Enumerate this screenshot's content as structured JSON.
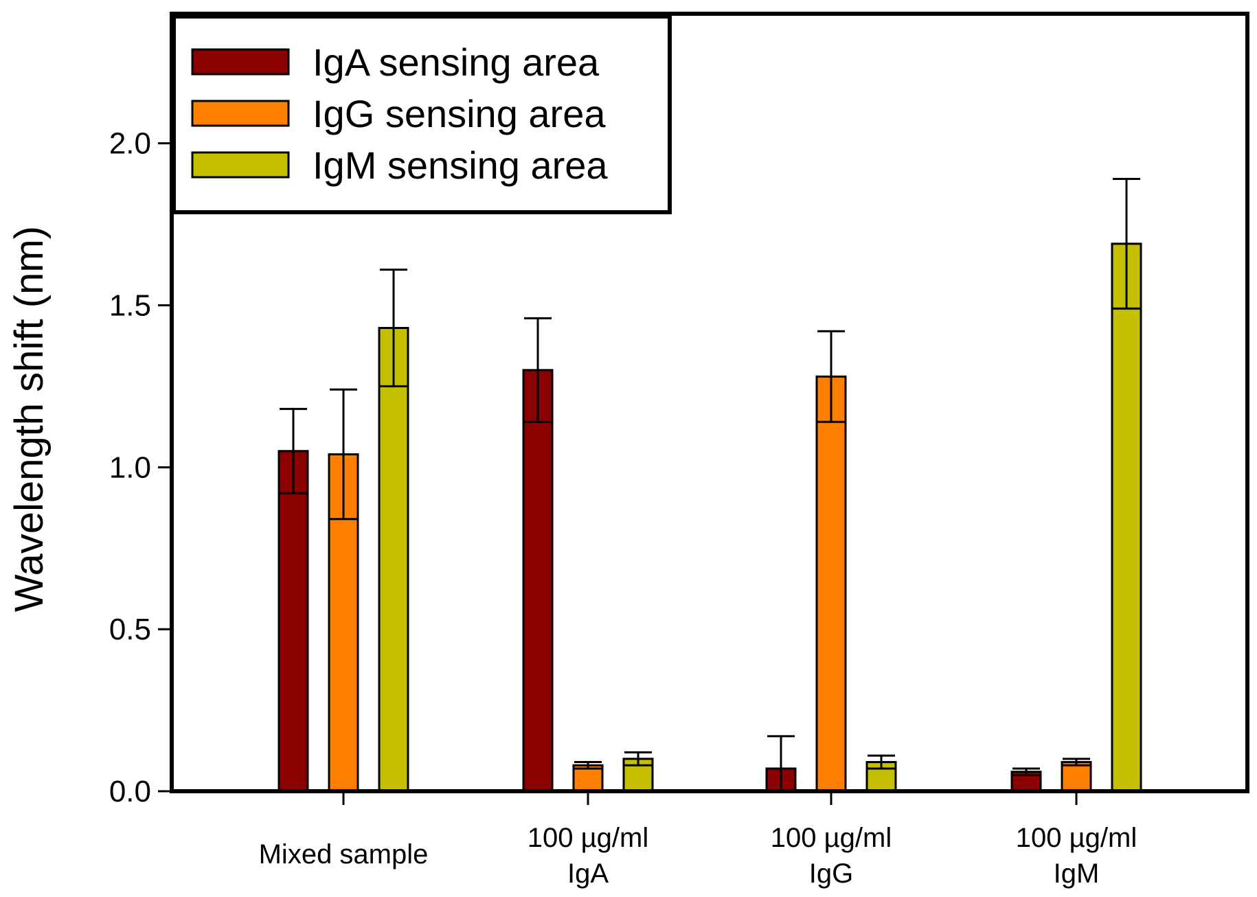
{
  "chart_data": {
    "type": "bar",
    "title": "",
    "xlabel": "",
    "ylabel": "Wavelength shift (nm)",
    "ylim": [
      0,
      2.4
    ],
    "yticks": [
      "0.0",
      "0.5",
      "1.0",
      "1.5",
      "2.0"
    ],
    "categories": [
      {
        "line1": "Mixed sample",
        "line2": ""
      },
      {
        "line1": "100 µg/ml",
        "line2": "IgA"
      },
      {
        "line1": "100 µg/ml",
        "line2": "IgG"
      },
      {
        "line1": "100 µg/ml",
        "line2": "IgM"
      }
    ],
    "series": [
      {
        "name": "IgA sensing area",
        "color": "#8B0000",
        "values": [
          1.05,
          1.3,
          0.07,
          0.06
        ],
        "errors": [
          0.13,
          0.16,
          0.1,
          0.01
        ]
      },
      {
        "name": "IgG sensing area",
        "color": "#FF8000",
        "values": [
          1.04,
          0.08,
          1.28,
          0.09
        ],
        "errors": [
          0.2,
          0.01,
          0.14,
          0.01
        ]
      },
      {
        "name": "IgM sensing area",
        "color": "#C4BF00",
        "values": [
          1.43,
          0.1,
          0.09,
          1.69
        ],
        "errors": [
          0.18,
          0.02,
          0.02,
          0.2
        ]
      }
    ],
    "legend_position": "top-left",
    "grid": false
  }
}
